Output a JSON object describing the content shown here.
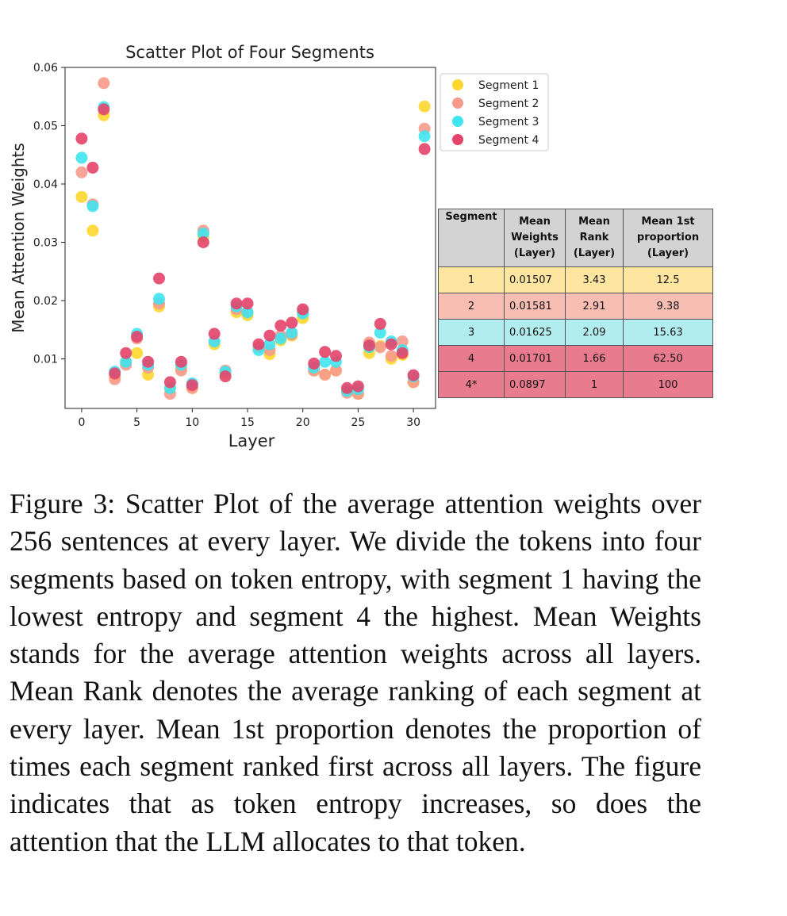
{
  "chart_data": {
    "type": "scatter",
    "title": "Scatter Plot of Four Segments",
    "xlabel": "Layer",
    "ylabel": "Mean Attention Weights",
    "xlim": [
      -1.5,
      32
    ],
    "ylim": [
      0.0015,
      0.06
    ],
    "xticks": [
      0,
      5,
      10,
      15,
      20,
      25,
      30
    ],
    "yticks": [
      0.01,
      0.02,
      0.03,
      0.04,
      0.05,
      0.06
    ],
    "ytick_labels": [
      "0.01",
      "0.02",
      "0.03",
      "0.04",
      "0.05",
      "0.06"
    ],
    "grid": false,
    "legend_position": "outside-right-top",
    "series": [
      {
        "name": "Segment 1",
        "color": "#FFD62E",
        "x": [
          0,
          1,
          2,
          3,
          4,
          5,
          6,
          7,
          8,
          9,
          10,
          11,
          12,
          13,
          14,
          15,
          16,
          17,
          18,
          19,
          20,
          21,
          22,
          23,
          24,
          25,
          26,
          27,
          28,
          29,
          30,
          31
        ],
        "y": [
          0.0378,
          0.032,
          0.0518,
          0.007,
          0.0095,
          0.011,
          0.0073,
          0.019,
          0.005,
          0.0085,
          0.005,
          0.031,
          0.0125,
          0.0075,
          0.018,
          0.0175,
          0.012,
          0.0108,
          0.0132,
          0.014,
          0.017,
          0.008,
          0.0073,
          0.008,
          0.0045,
          0.004,
          0.011,
          0.0122,
          0.01,
          0.0107,
          0.006,
          0.0533
        ]
      },
      {
        "name": "Segment 2",
        "color": "#F79A8C",
        "x": [
          0,
          1,
          2,
          3,
          4,
          5,
          6,
          7,
          8,
          9,
          10,
          11,
          12,
          13,
          14,
          15,
          16,
          17,
          18,
          19,
          20,
          21,
          22,
          23,
          24,
          25,
          26,
          27,
          28,
          29,
          30,
          31
        ],
        "y": [
          0.042,
          0.0365,
          0.0573,
          0.0065,
          0.009,
          0.0135,
          0.0085,
          0.0195,
          0.004,
          0.008,
          0.005,
          0.032,
          0.013,
          0.008,
          0.0185,
          0.018,
          0.012,
          0.0115,
          0.014,
          0.0142,
          0.018,
          0.008,
          0.0073,
          0.008,
          0.0042,
          0.004,
          0.0128,
          0.012,
          0.0105,
          0.013,
          0.006,
          0.0495
        ]
      },
      {
        "name": "Segment 3",
        "color": "#3FE4F0",
        "x": [
          0,
          1,
          2,
          3,
          4,
          5,
          6,
          7,
          8,
          9,
          10,
          11,
          12,
          13,
          14,
          15,
          16,
          17,
          18,
          19,
          20,
          21,
          22,
          23,
          24,
          25,
          26,
          27,
          28,
          29,
          30,
          31
        ],
        "y": [
          0.0445,
          0.0362,
          0.0532,
          0.0078,
          0.0095,
          0.0143,
          0.009,
          0.0203,
          0.005,
          0.009,
          0.0058,
          0.0315,
          0.013,
          0.0078,
          0.019,
          0.018,
          0.0115,
          0.0125,
          0.0135,
          0.0145,
          0.0178,
          0.0085,
          0.0095,
          0.0095,
          0.0045,
          0.0048,
          0.012,
          0.0145,
          0.013,
          0.0115,
          0.007,
          0.0482
        ]
      },
      {
        "name": "Segment 4",
        "color": "#E4446A",
        "x": [
          0,
          1,
          2,
          3,
          4,
          5,
          6,
          7,
          8,
          9,
          10,
          11,
          12,
          13,
          14,
          15,
          16,
          17,
          18,
          19,
          20,
          21,
          22,
          23,
          24,
          25,
          26,
          27,
          28,
          29,
          30,
          31
        ],
        "y": [
          0.0478,
          0.0428,
          0.0528,
          0.0075,
          0.011,
          0.0138,
          0.0095,
          0.0238,
          0.006,
          0.0095,
          0.0055,
          0.03,
          0.0143,
          0.007,
          0.0195,
          0.0195,
          0.0125,
          0.014,
          0.0157,
          0.0162,
          0.0185,
          0.0092,
          0.0112,
          0.0105,
          0.005,
          0.0053,
          0.0123,
          0.016,
          0.0125,
          0.011,
          0.0072,
          0.046
        ]
      }
    ]
  },
  "table": {
    "header": [
      "Segment",
      "Mean Weights (Layer)",
      "Mean Rank (Layer)",
      "Mean 1st proportion (Layer)"
    ],
    "header_lines": [
      [
        "Segment"
      ],
      [
        "Mean",
        "Weights",
        "(Layer)"
      ],
      [
        "Mean",
        "Rank",
        "(Layer)"
      ],
      [
        "Mean 1st",
        "proportion",
        "(Layer)"
      ]
    ],
    "rows": [
      {
        "segment": "1",
        "weights": "0.01507",
        "rank": "3.43",
        "first": "12.5",
        "color": "#FFE6A0"
      },
      {
        "segment": "2",
        "weights": "0.01581",
        "rank": "2.91",
        "first": "9.38",
        "color": "#F8BDB3"
      },
      {
        "segment": "3",
        "weights": "0.01625",
        "rank": "2.09",
        "first": "15.63",
        "color": "#B1ECEE"
      },
      {
        "segment": "4",
        "weights": "0.01701",
        "rank": "1.66",
        "first": "62.50",
        "color": "#E97B8E"
      },
      {
        "segment": "4*",
        "weights": "0.0897",
        "rank": "1",
        "first": "100",
        "color": "#E97B8E"
      }
    ]
  },
  "caption": "Figure 3: Scatter Plot of the average attention weights over 256 sentences at every layer. We divide the tokens into four segments based on token entropy, with segment 1 having the lowest entropy and segment 4 the highest. Mean Weights stands for the average attention weights across all layers. Mean Rank denotes the average ranking of each segment at every layer. Mean 1st proportion denotes the proportion of times each segment ranked first across all layers. The figure indicates that as token entropy increases, so does the attention that the LLM allocates to that token."
}
